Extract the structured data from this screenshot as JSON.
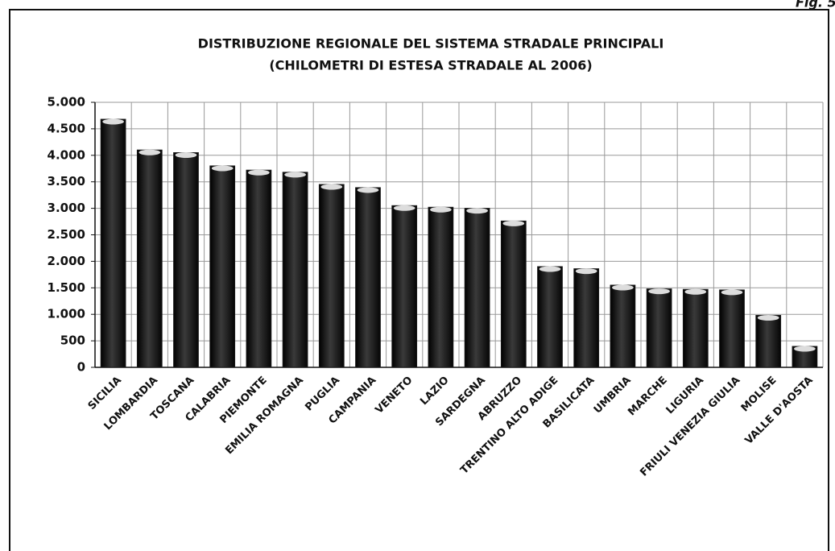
{
  "figure_label": "Fig. 5.",
  "chart_data": {
    "type": "bar",
    "title": "DISTRIBUZIONE REGIONALE DEL SISTEMA STRADALE PRINCIPALI",
    "subtitle": "(CHILOMETRI DI ESTESA STRADALE AL 2006)",
    "categories": [
      "SICILIA",
      "LOMBARDIA",
      "TOSCANA",
      "CALABRIA",
      "PIEMONTE",
      "EMILIA ROMAGNA",
      "PUGLIA",
      "CAMPANIA",
      "VENETO",
      "LAZIO",
      "SARDEGNA",
      "ABRUZZO",
      "TRENTINO ALTO ADIGE",
      "BASILICATA",
      "UMBRIA",
      "MARCHE",
      "LIGURIA",
      "FRIULI VENEZIA GIULIA",
      "MOLISE",
      "VALLE D'AOSTA"
    ],
    "values": [
      4680,
      4100,
      4050,
      3800,
      3720,
      3680,
      3450,
      3390,
      3050,
      3020,
      3000,
      2760,
      1900,
      1860,
      1550,
      1480,
      1470,
      1460,
      980,
      395
    ],
    "color": "#1a1a1a",
    "ylim": [
      0,
      5000
    ],
    "yticks": [
      0,
      500,
      {
        "value": 1000,
        "label": "1.000"
      },
      {
        "value": 1500,
        "label": "1.500"
      },
      {
        "value": 2000,
        "label": "2.000"
      },
      {
        "value": 2500,
        "label": "2.500"
      },
      {
        "value": 3000,
        "label": "3.000"
      },
      {
        "value": 3500,
        "label": "3.500"
      },
      {
        "value": 4000,
        "label": "4.000"
      },
      {
        "value": 4500,
        "label": "4.500"
      },
      {
        "value": 5000,
        "label": "5.000"
      }
    ],
    "grid": true
  }
}
